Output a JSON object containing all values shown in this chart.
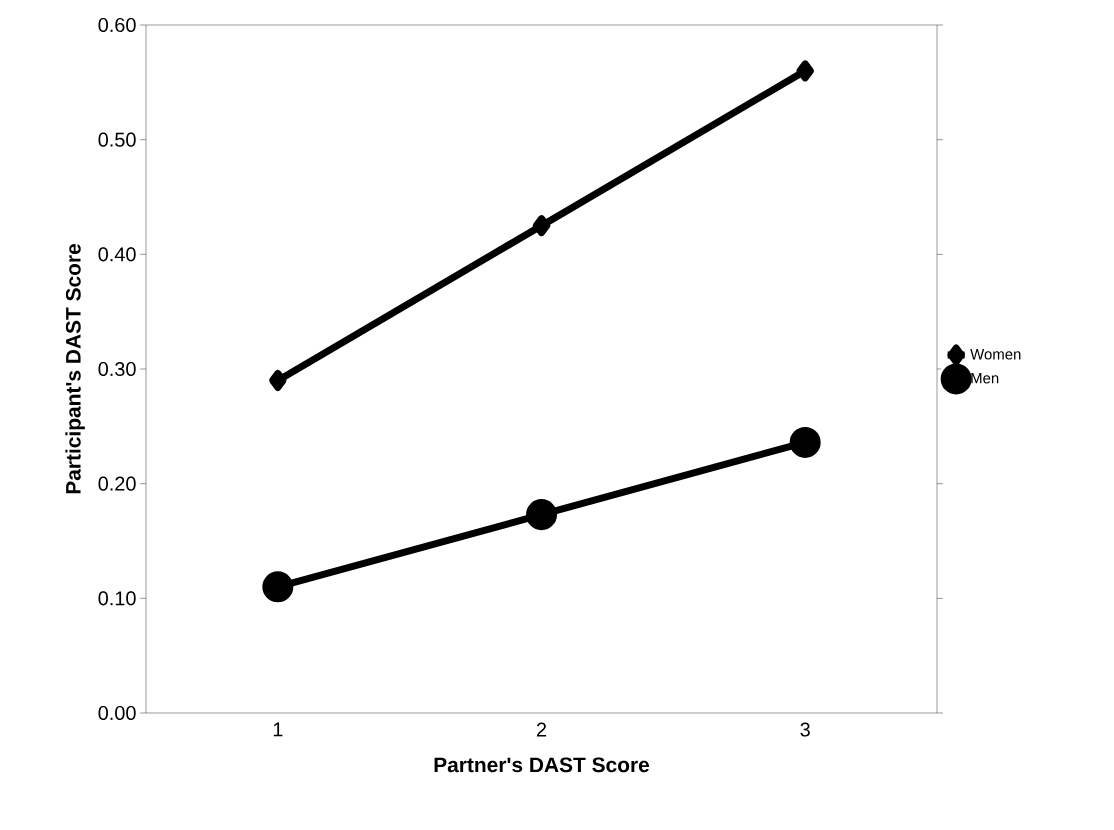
{
  "chart_data": {
    "type": "line",
    "xlabel": "Partner's DAST Score",
    "ylabel": "Participant's DAST Score",
    "categories": [
      "1",
      "2",
      "3"
    ],
    "series": [
      {
        "name": "Women",
        "color": "#000000",
        "marker": "diamond",
        "values": [
          0.29,
          0.425,
          0.56
        ]
      },
      {
        "name": "Men",
        "color": "#000000",
        "marker": "circle",
        "values": [
          0.11,
          0.173,
          0.236
        ]
      }
    ],
    "ylim": [
      0,
      0.6
    ],
    "yticks": [
      {
        "value": 0,
        "label": "0.00"
      },
      {
        "value": 0.1,
        "label": "0.10"
      },
      {
        "value": 0.2,
        "label": "0.20"
      },
      {
        "value": 0.3,
        "label": "0.30"
      },
      {
        "value": 0.4,
        "label": "0.40"
      },
      {
        "value": 0.5,
        "label": "0.50"
      },
      {
        "value": 0.6,
        "label": "0.60"
      }
    ],
    "grid": false,
    "legend": "right",
    "line_style": "solid"
  }
}
